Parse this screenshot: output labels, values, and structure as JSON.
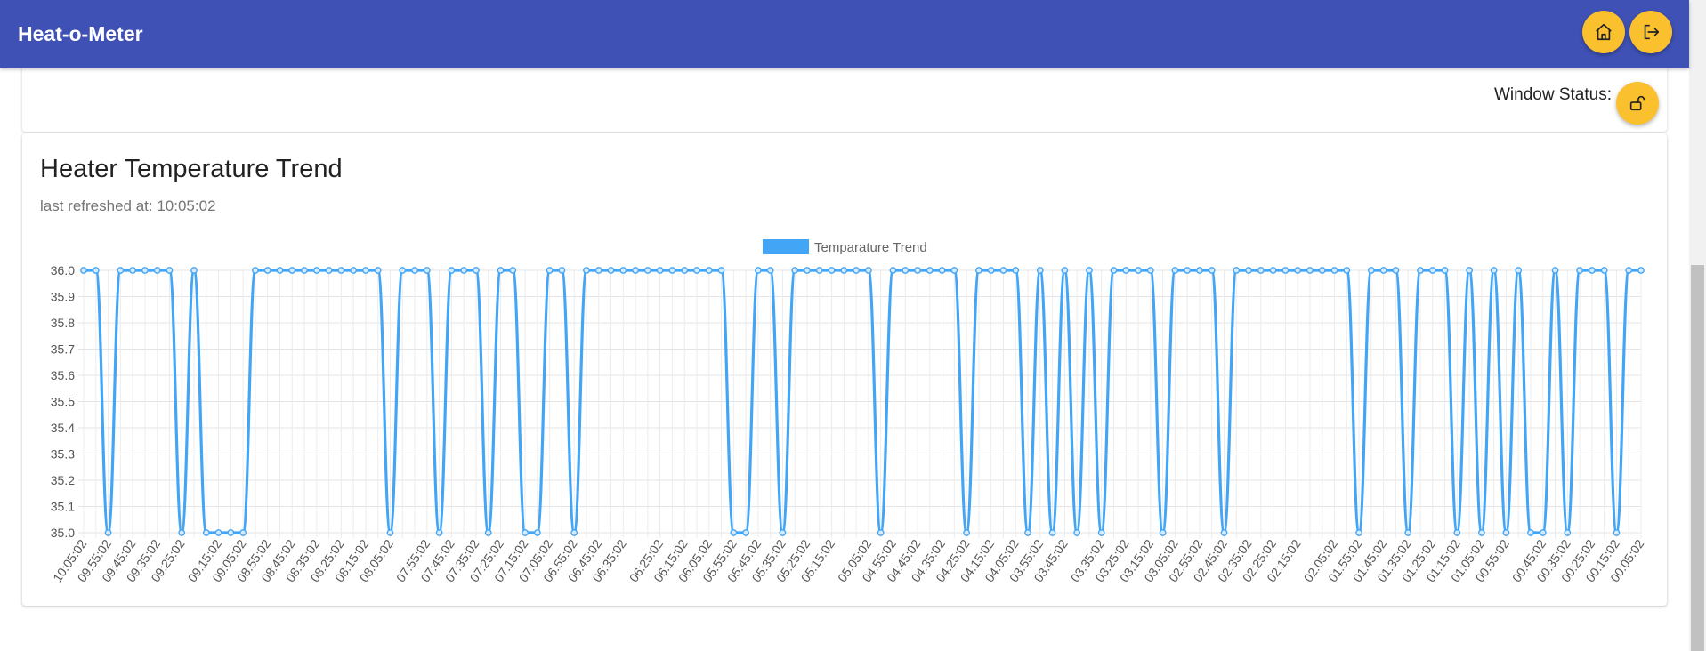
{
  "app": {
    "title": "Heat-o-Meter"
  },
  "toolbar": {
    "home_icon": "home-icon",
    "logout_icon": "logout-icon"
  },
  "status_card": {
    "label": "Window Status:",
    "icon": "lock-open-icon"
  },
  "chart_card": {
    "title": "Heater Temperature Trend",
    "subtitle": "last refreshed at: 10:05:02"
  },
  "colors": {
    "appbar": "#3f51b5",
    "accent": "#fbc02d",
    "series": "#42a5f5"
  },
  "chart_data": {
    "type": "line",
    "legend": "top-center",
    "grid": true,
    "ylim": [
      35.0,
      36.0
    ],
    "yticks": [
      "36.0",
      "35.9",
      "35.8",
      "35.7",
      "35.6",
      "35.5",
      "35.4",
      "35.3",
      "35.2",
      "35.1",
      "35.0"
    ],
    "x_tick_labels": [
      "10:05:02",
      "09:55:02",
      "09:45:02",
      "09:35:02",
      "09:25:02",
      "09:15:02",
      "09:05:02",
      "08:55:02",
      "08:45:02",
      "08:35:02",
      "08:25:02",
      "08:15:02",
      "08:05:02",
      "07:55:02",
      "07:45:02",
      "07:35:02",
      "07:25:02",
      "07:15:02",
      "07:05:02",
      "06:55:02",
      "06:45:02",
      "06:35:02",
      "06:25:02",
      "06:15:02",
      "06:05:02",
      "05:55:02",
      "05:45:02",
      "05:35:02",
      "05:25:02",
      "05:15:02",
      "05:05:02",
      "04:55:02",
      "04:45:02",
      "04:35:02",
      "04:25:02",
      "04:15:02",
      "04:05:02",
      "03:55:02",
      "03:45:02",
      "03:35:02",
      "03:25:02",
      "03:15:02",
      "03:05:02",
      "02:55:02",
      "02:45:02",
      "02:35:02",
      "02:25:02",
      "02:15:02",
      "02:05:02",
      "01:55:02",
      "01:45:02",
      "01:35:02",
      "01:25:02",
      "01:15:02",
      "01:05:02",
      "00:55:02",
      "00:45:02",
      "00:35:02",
      "00:25:02",
      "00:15:02",
      "00:05:02"
    ],
    "series": [
      {
        "name": "Temparature Trend",
        "values": [
          36.0,
          36.0,
          35.0,
          36.0,
          36.0,
          36.0,
          36.0,
          36.0,
          35.0,
          36.0,
          35.0,
          35.0,
          35.0,
          35.0,
          36.0,
          36.0,
          36.0,
          36.0,
          36.0,
          36.0,
          36.0,
          36.0,
          36.0,
          36.0,
          36.0,
          35.0,
          36.0,
          36.0,
          36.0,
          35.0,
          36.0,
          36.0,
          36.0,
          35.0,
          36.0,
          36.0,
          35.0,
          35.0,
          36.0,
          36.0,
          35.0,
          36.0,
          36.0,
          36.0,
          36.0,
          36.0,
          36.0,
          36.0,
          36.0,
          36.0,
          36.0,
          36.0,
          36.0,
          35.0,
          35.0,
          36.0,
          36.0,
          35.0,
          36.0,
          36.0,
          36.0,
          36.0,
          36.0,
          36.0,
          36.0,
          35.0,
          36.0,
          36.0,
          36.0,
          36.0,
          36.0,
          36.0,
          35.0,
          36.0,
          36.0,
          36.0,
          36.0,
          35.0,
          36.0,
          35.0,
          36.0,
          35.0,
          36.0,
          35.0,
          36.0,
          36.0,
          36.0,
          36.0,
          35.0,
          36.0,
          36.0,
          36.0,
          36.0,
          35.0,
          36.0,
          36.0,
          36.0,
          36.0,
          36.0,
          36.0,
          36.0,
          36.0,
          36.0,
          36.0,
          35.0,
          36.0,
          36.0,
          36.0,
          35.0,
          36.0,
          36.0,
          36.0,
          35.0,
          36.0,
          35.0,
          36.0,
          35.0,
          36.0,
          35.0,
          35.0,
          36.0,
          35.0,
          36.0,
          36.0,
          36.0,
          35.0,
          36.0,
          36.0
        ]
      }
    ]
  }
}
